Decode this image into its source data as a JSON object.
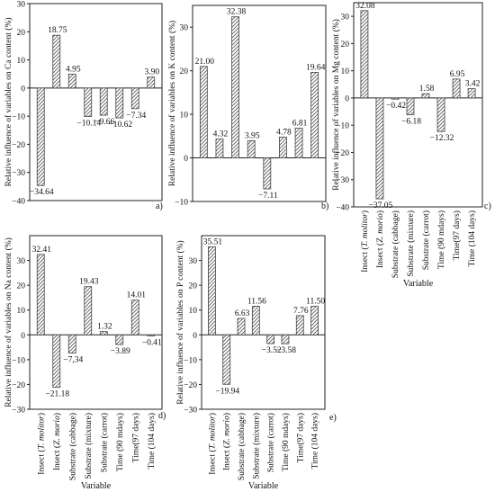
{
  "chart_data": [
    {
      "type": "bar",
      "panel_label": "a)",
      "ylabel": "Relative influence of variables on Ca content (%)",
      "ylim": [
        -40,
        30
      ],
      "yticks": [
        -40,
        -30,
        -20,
        -10,
        0,
        10,
        20,
        30
      ],
      "values": [
        -34.64,
        18.75,
        4.95,
        -10.14,
        -9.66,
        -10.62,
        -7.34,
        3.9
      ],
      "labels": [
        "−34.64",
        "18.75",
        "4.95",
        "−10.14",
        "−9.66",
        "−10.62",
        "−7.34",
        "3.90"
      ]
    },
    {
      "type": "bar",
      "panel_label": "b)",
      "ylabel": "Relative influence of variables on K content (%)",
      "ylim": [
        -10,
        35
      ],
      "yticks": [
        -10,
        0,
        10,
        20,
        30
      ],
      "values": [
        21.0,
        4.32,
        32.38,
        3.95,
        -7.11,
        4.78,
        6.81,
        19.64
      ],
      "labels": [
        "21.00",
        "4.32",
        "32.38",
        "3.95",
        "−7.11",
        "4.78",
        "6.81",
        "19.64"
      ]
    },
    {
      "type": "bar",
      "panel_label": "c)",
      "ylabel": "Relative influence of variables on Mg content (%)",
      "ylim": [
        -40,
        35
      ],
      "yticks": [
        -40,
        -30,
        -20,
        -10,
        0,
        10,
        20,
        30
      ],
      "values": [
        32.08,
        -37.05,
        -0.42,
        -6.18,
        1.58,
        -12.32,
        6.95,
        3.42
      ],
      "labels": [
        "32.08",
        "−37.05",
        "−0.42",
        "−6.18",
        "1.58",
        "−12.32",
        "6.95",
        "3.42"
      ],
      "categories": [
        "Insect (T. molitor)",
        "Insect (Z. morio)",
        "Substrate (cabbage)",
        "Substrate (mixture)",
        "Substrate (carrot)",
        "Time (90 mdays)",
        "Time(97 days)",
        "Time (104 days)"
      ],
      "xlabel": "Variable"
    },
    {
      "type": "bar",
      "panel_label": "d)",
      "ylabel": "Relative influence of variables on Na content (%)",
      "ylim": [
        -30,
        40
      ],
      "yticks": [
        -30,
        -20,
        -10,
        0,
        10,
        20,
        30
      ],
      "values": [
        32.41,
        -21.18,
        -7.34,
        19.43,
        1.32,
        -3.89,
        14.01,
        -0.41
      ],
      "labels": [
        "32.41",
        "−21.18",
        "−7,34",
        "19.43",
        "1.32",
        "−3.89",
        "14.01",
        "−0.41"
      ],
      "categories": [
        "Insect (T. molitor)",
        "Insect (Z. morio)",
        "Substrate (cabbage)",
        "Substrate (mixture)",
        "Substrate (carrot)",
        "Time (90 mdays)",
        "Time(97 days)",
        "Time (104 days)"
      ],
      "xlabel": "Variable"
    },
    {
      "type": "bar",
      "panel_label": "e)",
      "ylabel": "Relative influence of variables on P content (%)",
      "ylim": [
        -30,
        40
      ],
      "yticks": [
        -30,
        -20,
        -10,
        0,
        10,
        20,
        30
      ],
      "values": [
        35.51,
        -19.94,
        6.63,
        11.56,
        -3.52,
        -3.58,
        7.76,
        11.5
      ],
      "labels": [
        "35.51",
        "−19.94",
        "6.63",
        "11.56",
        "−3.52",
        "−3.58",
        "7.76",
        "11.50"
      ],
      "categories": [
        "Insect (T. molitor)",
        "Insect (Z. morio)",
        "Substrate (cabbage)",
        "Substrate (mixture)",
        "Substrate (carrot)",
        "Time (90 mdays)",
        "Time(97 days)",
        "Time (104 days)"
      ],
      "xlabel": "Variable"
    }
  ]
}
